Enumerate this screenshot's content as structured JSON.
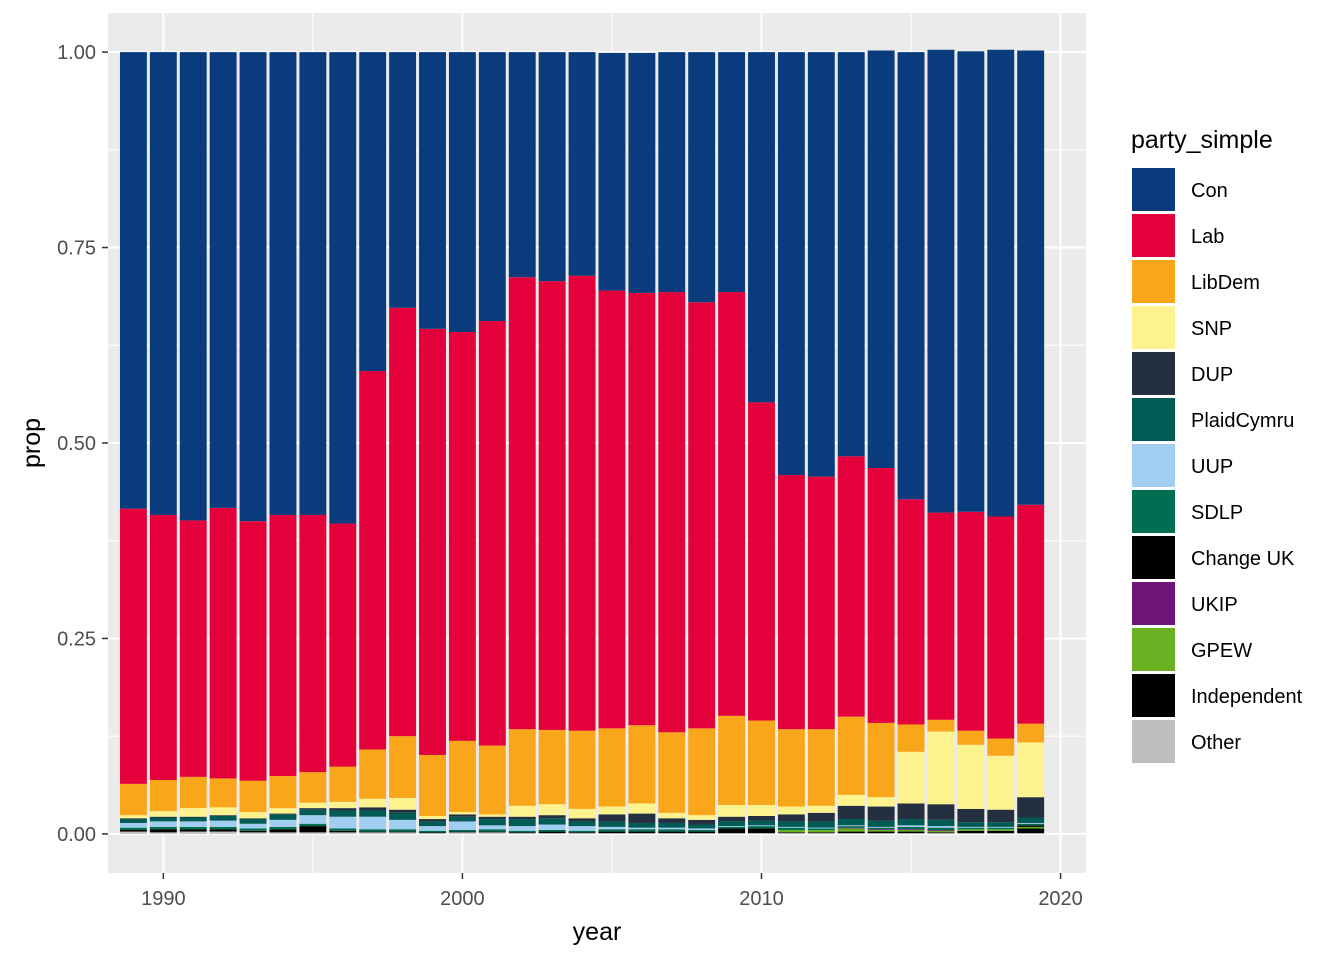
{
  "chart_data": {
    "type": "bar",
    "stacked": true,
    "title": "",
    "xlabel": "year",
    "ylabel": "prop",
    "xlim": [
      1988.15,
      2020.85
    ],
    "ylim": [
      -0.05,
      1.05
    ],
    "x_ticks": [
      {
        "value": 1990,
        "label": "1990"
      },
      {
        "value": 2000,
        "label": "2000"
      },
      {
        "value": 2010,
        "label": "2010"
      },
      {
        "value": 2020,
        "label": "2020"
      }
    ],
    "y_ticks": [
      {
        "value": 0,
        "label": "0.00"
      },
      {
        "value": 0.25,
        "label": "0.25"
      },
      {
        "value": 0.5,
        "label": "0.50"
      },
      {
        "value": 0.75,
        "label": "0.75"
      },
      {
        "value": 1,
        "label": "1.00"
      }
    ],
    "grid": true,
    "legend": {
      "title": "party_simple",
      "position": "right"
    },
    "x": [
      1989,
      1990,
      1991,
      1992,
      1993,
      1994,
      1995,
      1996,
      1997,
      1998,
      1999,
      2000,
      2001,
      2002,
      2003,
      2004,
      2005,
      2006,
      2007,
      2008,
      2009,
      2010,
      2011,
      2012,
      2013,
      2014,
      2015,
      2016,
      2017,
      2018,
      2019
    ],
    "series": [
      {
        "name": "Other",
        "color": "#BEBEBE",
        "values": [
          0.003,
          0.002,
          0.003,
          0.003,
          0.002,
          0.002,
          0.002,
          0.002,
          0.002,
          0.002,
          0.001,
          0.002,
          0.002,
          0.001,
          0.001,
          0.001,
          0.001,
          0.001,
          0.001,
          0.001,
          0.001,
          0.001,
          0.001,
          0.001,
          0.001,
          0.001,
          0.001,
          0.001,
          0.001,
          0.001,
          0.001
        ]
      },
      {
        "name": "Independent",
        "color": "#000000",
        "values": [
          0.002,
          0.004,
          0.003,
          0.003,
          0.002,
          0.004,
          0.008,
          0.002,
          0.001,
          0.001,
          0.001,
          0.001,
          0.001,
          0.001,
          0.002,
          0.001,
          0.002,
          0.002,
          0.002,
          0.002,
          0.006,
          0.006,
          0.001,
          0.001,
          0.002,
          0.002,
          0.002,
          0.001,
          0.003,
          0.003,
          0.006
        ]
      },
      {
        "name": "GPEW",
        "color": "#6AB023",
        "values": [
          0,
          0,
          0,
          0,
          0,
          0,
          0,
          0,
          0,
          0,
          0,
          0,
          0,
          0,
          0,
          0,
          0,
          0,
          0,
          0,
          0,
          0,
          0.003,
          0.003,
          0.004,
          0.002,
          0.002,
          0.002,
          0.002,
          0.002,
          0.002
        ]
      },
      {
        "name": "UKIP",
        "color": "#70147A",
        "values": [
          0,
          0,
          0,
          0,
          0,
          0,
          0,
          0,
          0,
          0,
          0,
          0,
          0,
          0,
          0,
          0,
          0,
          0,
          0,
          0,
          0,
          0,
          0,
          0,
          0.001,
          0.001,
          0.001,
          0.001,
          0,
          0,
          0
        ]
      },
      {
        "name": "Change UK",
        "color": "#000000",
        "values": [
          0,
          0,
          0,
          0,
          0,
          0,
          0,
          0,
          0,
          0,
          0,
          0,
          0,
          0,
          0,
          0,
          0,
          0,
          0,
          0,
          0,
          0,
          0,
          0,
          0,
          0,
          0,
          0,
          0,
          0,
          0.002
        ]
      },
      {
        "name": "SDLP",
        "color": "#006E51",
        "values": [
          0.003,
          0.003,
          0.003,
          0.003,
          0.003,
          0.003,
          0.003,
          0.003,
          0.003,
          0.003,
          0.002,
          0.002,
          0.003,
          0.002,
          0.002,
          0.002,
          0.003,
          0.003,
          0.003,
          0.002,
          0.002,
          0.003,
          0.003,
          0.002,
          0.002,
          0.002,
          0.003,
          0.003,
          0.002,
          0.002,
          0.002
        ]
      },
      {
        "name": "UUP",
        "color": "#A1CDF0",
        "values": [
          0.006,
          0.007,
          0.007,
          0.008,
          0.006,
          0.009,
          0.011,
          0.015,
          0.016,
          0.012,
          0.006,
          0.011,
          0.005,
          0.006,
          0.007,
          0.006,
          0.003,
          0.002,
          0.002,
          0.002,
          0.001,
          0.001,
          0.001,
          0.001,
          0.001,
          0.001,
          0.002,
          0.002,
          0.001,
          0.001,
          0.001
        ]
      },
      {
        "name": "PlaidCymru",
        "color": "#005B54",
        "values": [
          0.005,
          0.005,
          0.005,
          0.006,
          0.006,
          0.007,
          0.007,
          0.008,
          0.008,
          0.009,
          0.006,
          0.006,
          0.008,
          0.009,
          0.008,
          0.006,
          0.007,
          0.006,
          0.006,
          0.005,
          0.006,
          0.006,
          0.007,
          0.008,
          0.008,
          0.008,
          0.008,
          0.008,
          0.006,
          0.006,
          0.007
        ]
      },
      {
        "name": "DUP",
        "color": "#243040",
        "values": [
          0.001,
          0.001,
          0.001,
          0.001,
          0.001,
          0.001,
          0.002,
          0.003,
          0.004,
          0.004,
          0.003,
          0.003,
          0.003,
          0.003,
          0.004,
          0.004,
          0.009,
          0.012,
          0.006,
          0.006,
          0.006,
          0.006,
          0.009,
          0.011,
          0.017,
          0.018,
          0.02,
          0.02,
          0.017,
          0.016,
          0.026
        ]
      },
      {
        "name": "SNP",
        "color": "#FDF38E",
        "values": [
          0.004,
          0.007,
          0.011,
          0.01,
          0.008,
          0.007,
          0.007,
          0.008,
          0.011,
          0.015,
          0.004,
          0.003,
          0.003,
          0.014,
          0.014,
          0.012,
          0.01,
          0.013,
          0.007,
          0.006,
          0.015,
          0.014,
          0.01,
          0.009,
          0.014,
          0.012,
          0.066,
          0.093,
          0.082,
          0.069,
          0.07
        ]
      },
      {
        "name": "LibDem",
        "color": "#FAA61A",
        "values": [
          0.04,
          0.04,
          0.04,
          0.037,
          0.04,
          0.041,
          0.039,
          0.045,
          0.063,
          0.079,
          0.078,
          0.091,
          0.088,
          0.098,
          0.095,
          0.1,
          0.1,
          0.1,
          0.103,
          0.111,
          0.114,
          0.108,
          0.099,
          0.098,
          0.1,
          0.095,
          0.035,
          0.015,
          0.018,
          0.022,
          0.024
        ]
      },
      {
        "name": "Lab",
        "color": "#E4003B",
        "values": [
          0.352,
          0.339,
          0.328,
          0.346,
          0.332,
          0.334,
          0.329,
          0.311,
          0.484,
          0.548,
          0.545,
          0.523,
          0.543,
          0.578,
          0.574,
          0.582,
          0.56,
          0.553,
          0.563,
          0.545,
          0.542,
          0.407,
          0.325,
          0.323,
          0.333,
          0.326,
          0.288,
          0.265,
          0.28,
          0.284,
          0.28
        ]
      },
      {
        "name": "Con",
        "color": "#0A3B7C",
        "values": [
          0.584,
          0.592,
          0.599,
          0.583,
          0.6,
          0.592,
          0.592,
          0.603,
          0.408,
          0.327,
          0.354,
          0.358,
          0.344,
          0.288,
          0.293,
          0.286,
          0.304,
          0.307,
          0.307,
          0.32,
          0.307,
          0.448,
          0.541,
          0.543,
          0.517,
          0.534,
          0.572,
          0.592,
          0.589,
          0.597,
          0.581
        ]
      }
    ],
    "legend_order": [
      "Con",
      "Lab",
      "LibDem",
      "SNP",
      "DUP",
      "PlaidCymru",
      "UUP",
      "SDLP",
      "Change UK",
      "UKIP",
      "GPEW",
      "Independent",
      "Other"
    ]
  },
  "colors": {
    "panel_background": "#EBEBEB",
    "grid_major": "#FFFFFF",
    "tick_text": "#4D4D4D"
  }
}
